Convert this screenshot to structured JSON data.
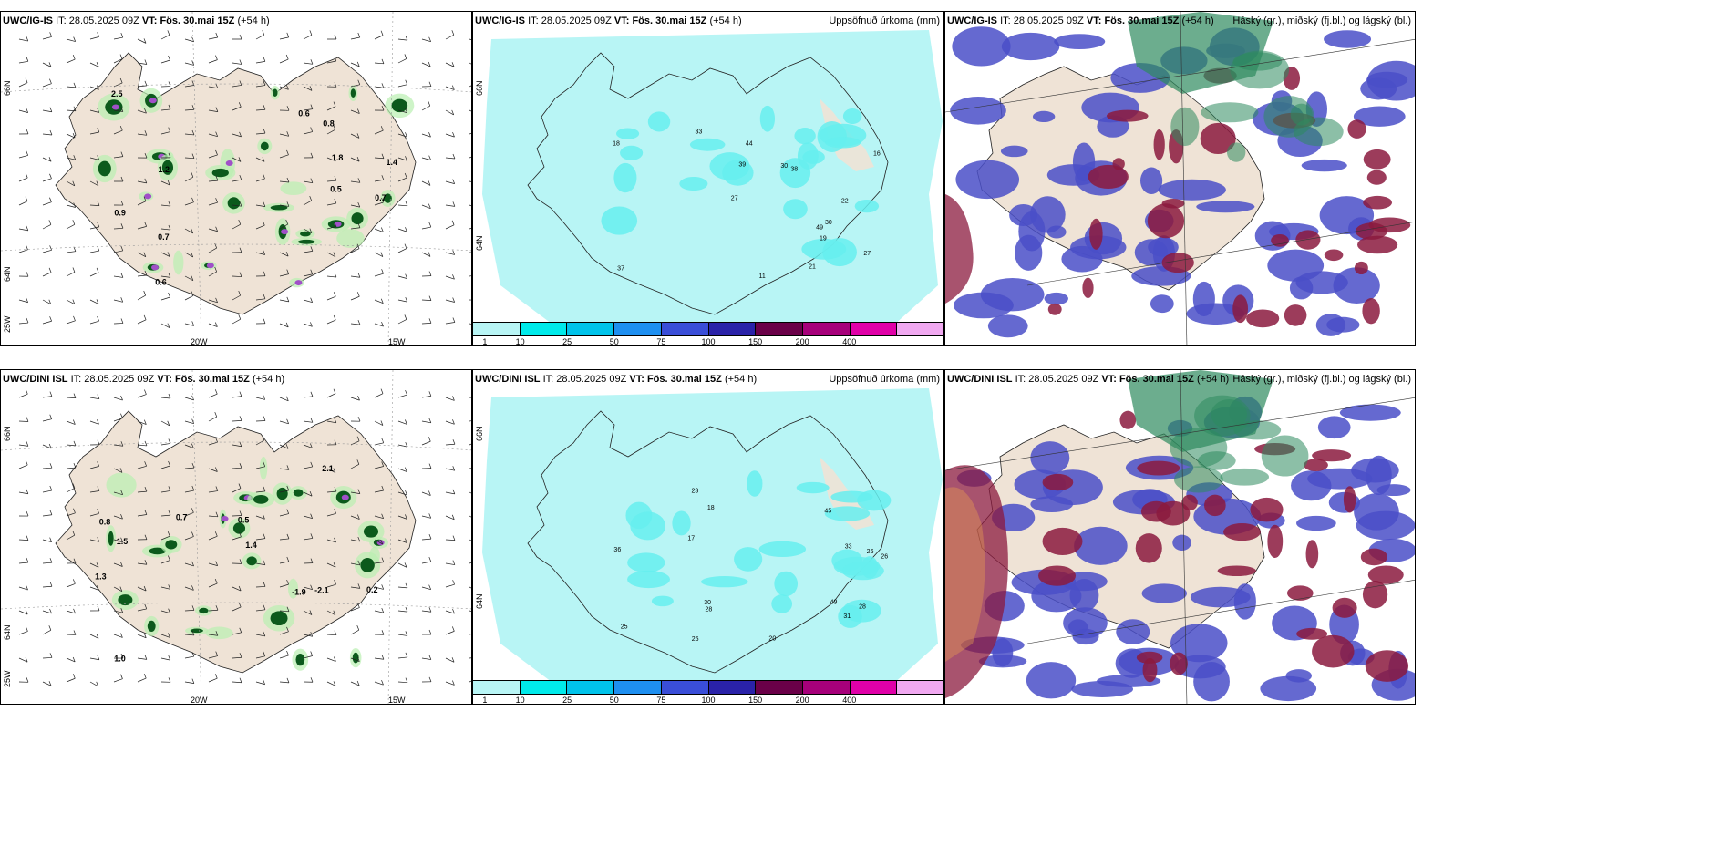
{
  "panels": [
    {
      "model": "UWC/IG-IS",
      "it_label": "IT:",
      "it": "28.05.2025 09Z",
      "vt_label": "VT:",
      "vt": "Fös. 30.mai 15Z",
      "lead": "(+54 h)",
      "subtitle": ""
    },
    {
      "model": "UWC/IG-IS",
      "it_label": "IT:",
      "it": "28.05.2025 09Z",
      "vt_label": "VT:",
      "vt": "Fös. 30.mai 15Z",
      "lead": "(+54 h)",
      "subtitle": "Uppsöfnuð úrkoma (mm)"
    },
    {
      "model": "UWC/IG-IS",
      "it_label": "IT:",
      "it": "28.05.2025 09Z",
      "vt_label": "VT:",
      "vt": "Fös. 30.mai 15Z",
      "lead": "(+54 h)",
      "subtitle": "Háský (gr.), miðský (fj.bl.) og lágský (bl.)"
    },
    {
      "model": "UWC/DINI ISL",
      "it_label": "IT:",
      "it": "28.05.2025 09Z",
      "vt_label": "VT:",
      "vt": "Fös. 30.mai 15Z",
      "lead": "(+54 h)",
      "subtitle": ""
    },
    {
      "model": "UWC/DINI ISL",
      "it_label": "IT:",
      "it": "28.05.2025 09Z",
      "vt_label": "VT:",
      "vt": "Fös. 30.mai 15Z",
      "lead": "(+54 h)",
      "subtitle": "Uppsöfnuð úrkoma (mm)"
    },
    {
      "model": "UWC/DINI ISL",
      "it_label": "IT:",
      "it": "28.05.2025 09Z",
      "vt_label": "VT:",
      "vt": "Fös. 30.mai 15Z",
      "lead": "(+54 h)",
      "subtitle": "Háský (gr.), miðský (fj.bl.) og lágský (bl.)"
    }
  ],
  "axes": {
    "lat66": "66N",
    "lat64": "64N",
    "lon25": "25W",
    "lon20": "20W",
    "lon15": "15W"
  },
  "scale": {
    "ticks": [
      "1",
      "10",
      "25",
      "50",
      "75",
      "100",
      "150",
      "200",
      "400"
    ],
    "colors": [
      "#b8f5f5",
      "#00eaea",
      "#00c3ea",
      "#1e8ff0",
      "#3a4ed8",
      "#2a22a8",
      "#6a0048",
      "#a6007a",
      "#e000a8",
      "#f0a8f0"
    ]
  },
  "colors": {
    "land": "#efe3d6",
    "precip_light": "#b8f5f5",
    "precip_mid": "#66eeee",
    "cloud_low": "#4a4fc8",
    "cloud_mid": "#8b1a3e",
    "cloud_high": "#2d8a5e",
    "green_dark": "#0c5a1c",
    "green_light": "#b9f0b0"
  },
  "rain_labels_top": [
    "11",
    "16",
    "18",
    "22",
    "27",
    "30",
    "39",
    "38",
    "27",
    "49",
    "44",
    "33",
    "37",
    "19",
    "21",
    "30"
  ],
  "rain_labels_bot": [
    "17",
    "23",
    "28",
    "25",
    "26",
    "18",
    "45",
    "36",
    "28",
    "31",
    "33",
    "30",
    "20",
    "49",
    "26",
    "25"
  ],
  "wind_labels_top": [
    "0.9",
    "0.5",
    "0.8",
    "0.7",
    "0.6",
    "1.2",
    "1.8",
    "2.5",
    "0.7",
    "1.4",
    "0.6"
  ],
  "wind_labels_bot": [
    "0.2",
    "0.5",
    "0.7",
    "1.3",
    "0.8",
    "1.0",
    "2.1",
    "-1.9",
    "1.5",
    "1.4",
    "-2.1"
  ]
}
